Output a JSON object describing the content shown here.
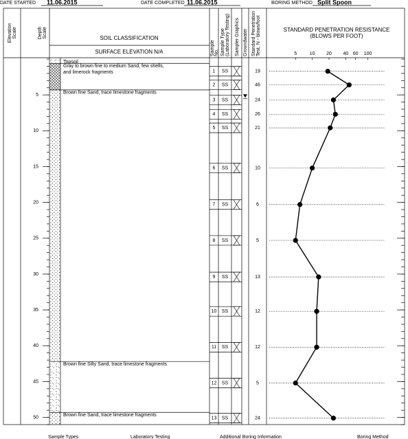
{
  "header": {
    "date_started_label": "DATE STARTED",
    "date_started": "11.06.2015",
    "date_completed_label": "DATE COMPLETED",
    "date_completed": "11.06.2015",
    "boring_method_label": "BORING METHOD",
    "boring_method": "Split Spoon"
  },
  "columns": {
    "elevation": [
      "Elevation",
      "Scale"
    ],
    "depth": [
      "Depth",
      "Scale"
    ],
    "soil_classification": "SOIL CLASSIFICATION",
    "surface_elevation": "SURFACE ELEVATION N/A",
    "sample_no": [
      "Sample",
      "No."
    ],
    "sample_type": [
      "Sample Type",
      "(Laboratory Testing)"
    ],
    "sampler_graphics": "Sampler Graphics",
    "groundwater": "Groundwater",
    "spt": [
      "Standard Penetration",
      "Test, N - blows/foot"
    ]
  },
  "depth_scale": {
    "lim": [
      0,
      51
    ],
    "ticks": [
      5,
      10,
      15,
      20,
      25,
      30,
      35,
      40,
      45,
      50
    ]
  },
  "strata": [
    {
      "top": 0,
      "bottom": 0.6,
      "lines": [
        "Topsoil"
      ],
      "pattern": "topsoil"
    },
    {
      "top": 0.6,
      "bottom": 4.3,
      "lines": [
        "Gray to brown fine to medium Sand, few shells,",
        "and limerock fragments"
      ],
      "pattern": "hatch"
    },
    {
      "top": 4.3,
      "bottom": 42.2,
      "lines": [
        "Brown fine Sand, trace limestone fragments"
      ],
      "pattern": "dots"
    },
    {
      "top": 42.2,
      "bottom": 49.3,
      "lines": [
        "Brown fine Silty Sand, trace limestone fragments"
      ],
      "pattern": "silty"
    },
    {
      "top": 49.3,
      "bottom": 51,
      "lines": [
        "Brown fine Sand, trace limestone fragments"
      ],
      "pattern": "dots"
    }
  ],
  "samples": [
    {
      "no": "1",
      "type": "SS",
      "depth": 1.7,
      "n": 19
    },
    {
      "no": "2",
      "type": "SS",
      "depth": 3.6,
      "n": 46
    },
    {
      "no": "3",
      "type": "SS",
      "depth": 5.7,
      "n": 24
    },
    {
      "no": "4",
      "type": "SS",
      "depth": 7.7,
      "n": 26
    },
    {
      "no": "5",
      "type": "SS",
      "depth": 9.6,
      "n": 21
    },
    {
      "no": "6",
      "type": "SS",
      "depth": 15.2,
      "n": 10
    },
    {
      "no": "7",
      "type": "SS",
      "depth": 20.3,
      "n": 6
    },
    {
      "no": "8",
      "type": "SS",
      "depth": 25.3,
      "n": 5
    },
    {
      "no": "9",
      "type": "SS",
      "depth": 30.4,
      "n": 13
    },
    {
      "no": "10",
      "type": "SS",
      "depth": 35.2,
      "n": 12
    },
    {
      "no": "11",
      "type": "SS",
      "depth": 40.2,
      "n": 12
    },
    {
      "no": "12",
      "type": "SS",
      "depth": 45.2,
      "n": 5
    },
    {
      "no": "13",
      "type": "SS",
      "depth": 50.1,
      "n": 24
    }
  ],
  "groundwater": {
    "depth": 5.2
  },
  "spt_chart": {
    "title": [
      "STANDARD PENETRATION RESISTANCE",
      "(BLOWS PER FOOT)"
    ],
    "xlim": [
      2,
      200
    ],
    "xticks": [
      5,
      10,
      20,
      40,
      60,
      100
    ],
    "log": true
  },
  "footer": [
    "Sample Types",
    "Laboratory Testing",
    "Additional Boring Information",
    "Boring Method"
  ]
}
